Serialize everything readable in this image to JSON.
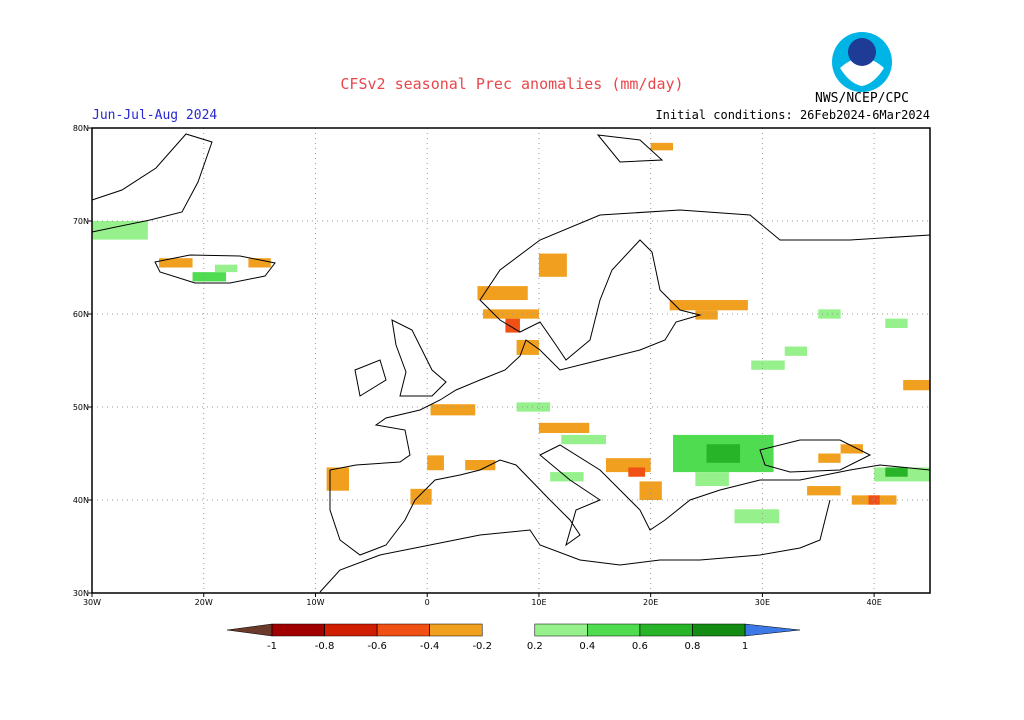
{
  "header": {
    "title": "CFSv2 seasonal Prec anomalies (mm/day)",
    "period": "Jun-Jul-Aug 2024",
    "agency": "NWS/NCEP/CPC",
    "initial_conditions": "Initial conditions: 26Feb2024-6Mar2024"
  },
  "map": {
    "lonlim": [
      -30,
      45
    ],
    "latlim": [
      30,
      80
    ],
    "lonticks": [
      {
        "value": -30,
        "label": "30W"
      },
      {
        "value": -20,
        "label": "20W"
      },
      {
        "value": -10,
        "label": "10W"
      },
      0,
      {
        "value": 10,
        "label": "10E"
      },
      {
        "value": 20,
        "label": "20E"
      },
      {
        "value": 30,
        "label": "30E"
      },
      {
        "value": 40,
        "label": "40E"
      }
    ],
    "latticks": [
      {
        "value": 80,
        "label": "80N"
      },
      {
        "value": 70,
        "label": "70N"
      },
      {
        "value": 60,
        "label": "60N"
      },
      {
        "value": 50,
        "label": "50N"
      },
      {
        "value": 40,
        "label": "40N"
      },
      {
        "value": 30,
        "label": "30N"
      }
    ],
    "grid": true,
    "colorbar": {
      "levels": [
        -1,
        -0.8,
        -0.6,
        -0.4,
        -0.2,
        0.2,
        0.4,
        0.6,
        0.8,
        1
      ],
      "colors": [
        "#6b3a2a",
        "#a00000",
        "#d21e00",
        "#f05014",
        "#f0a01e",
        "#ffffff",
        "#96f08c",
        "#50dc50",
        "#28b428",
        "#148c14",
        "#3c78e6"
      ]
    },
    "cells": [
      {
        "lon": [
          -30,
          -25
        ],
        "lat": [
          68,
          70
        ],
        "value": 0.3
      },
      {
        "lon": [
          -24,
          -21
        ],
        "lat": [
          65,
          66
        ],
        "value": -0.3
      },
      {
        "lon": [
          -16,
          -14
        ],
        "lat": [
          65,
          66
        ],
        "value": -0.3
      },
      {
        "lon": [
          -21,
          -18
        ],
        "lat": [
          63.5,
          64.5
        ],
        "value": 0.45
      },
      {
        "lon": [
          -19,
          -17
        ],
        "lat": [
          64.5,
          65.3
        ],
        "value": 0.25
      },
      {
        "lon": [
          4.5,
          9
        ],
        "lat": [
          61.5,
          63
        ],
        "value": -0.3
      },
      {
        "lon": [
          10,
          12.5
        ],
        "lat": [
          64,
          66.5
        ],
        "value": -0.3
      },
      {
        "lon": [
          5,
          10
        ],
        "lat": [
          59.5,
          60.5
        ],
        "value": -0.3
      },
      {
        "lon": [
          7,
          8.3
        ],
        "lat": [
          58,
          59.5
        ],
        "value": -0.5
      },
      {
        "lon": [
          8,
          10
        ],
        "lat": [
          55.6,
          57.2
        ],
        "value": -0.3
      },
      {
        "lon": [
          21.7,
          28.7
        ],
        "lat": [
          60.4,
          61.5
        ],
        "value": -0.3
      },
      {
        "lon": [
          24,
          26
        ],
        "lat": [
          59.4,
          60.4
        ],
        "value": -0.3
      },
      {
        "lon": [
          20,
          22
        ],
        "lat": [
          77.6,
          78.4
        ],
        "value": -0.3
      },
      {
        "lon": [
          35,
          37
        ],
        "lat": [
          59.5,
          60.5
        ],
        "value": 0.25
      },
      {
        "lon": [
          41,
          43
        ],
        "lat": [
          58.5,
          59.5
        ],
        "value": 0.25
      },
      {
        "lon": [
          32,
          34
        ],
        "lat": [
          55.5,
          56.5
        ],
        "value": 0.25
      },
      {
        "lon": [
          29,
          32
        ],
        "lat": [
          54,
          55
        ],
        "value": 0.25
      },
      {
        "lon": [
          42.6,
          45
        ],
        "lat": [
          51.8,
          52.9
        ],
        "value": -0.3
      },
      {
        "lon": [
          0.3,
          4.3
        ],
        "lat": [
          49.1,
          50.3
        ],
        "value": -0.3
      },
      {
        "lon": [
          8,
          11
        ],
        "lat": [
          49.5,
          50.5
        ],
        "value": 0.25
      },
      {
        "lon": [
          10,
          14.5
        ],
        "lat": [
          47.2,
          48.3
        ],
        "value": -0.3
      },
      {
        "lon": [
          12,
          16
        ],
        "lat": [
          46,
          47
        ],
        "value": 0.25
      },
      {
        "lon": [
          22,
          31
        ],
        "lat": [
          43,
          47
        ],
        "value": 0.45
      },
      {
        "lon": [
          25,
          28
        ],
        "lat": [
          44,
          46
        ],
        "value": 0.7
      },
      {
        "lon": [
          16,
          20
        ],
        "lat": [
          43,
          44.5
        ],
        "value": -0.3
      },
      {
        "lon": [
          18,
          19.5
        ],
        "lat": [
          42.5,
          43.5
        ],
        "value": -0.5
      },
      {
        "lon": [
          19,
          21
        ],
        "lat": [
          40,
          42
        ],
        "value": -0.3
      },
      {
        "lon": [
          11,
          14
        ],
        "lat": [
          42,
          43
        ],
        "value": 0.25
      },
      {
        "lon": [
          -9,
          -7
        ],
        "lat": [
          41,
          43.5
        ],
        "value": -0.3
      },
      {
        "lon": [
          0,
          1.5
        ],
        "lat": [
          43.2,
          44.8
        ],
        "value": -0.3
      },
      {
        "lon": [
          -1.5,
          0.4
        ],
        "lat": [
          39.5,
          41.2
        ],
        "value": -0.3
      },
      {
        "lon": [
          3.4,
          6.1
        ],
        "lat": [
          43.2,
          44.3
        ],
        "value": -0.3
      },
      {
        "lon": [
          34,
          37
        ],
        "lat": [
          40.5,
          41.5
        ],
        "value": -0.3
      },
      {
        "lon": [
          38,
          42
        ],
        "lat": [
          39.5,
          40.5
        ],
        "value": -0.3
      },
      {
        "lon": [
          39.5,
          40.5
        ],
        "lat": [
          39.5,
          40.5
        ],
        "value": -0.5
      },
      {
        "lon": [
          40,
          45
        ],
        "lat": [
          42,
          43.5
        ],
        "value": 0.3
      },
      {
        "lon": [
          41,
          43
        ],
        "lat": [
          42.5,
          43.5
        ],
        "value": 0.7
      },
      {
        "lon": [
          27.5,
          31.5
        ],
        "lat": [
          37.5,
          39
        ],
        "value": 0.3
      },
      {
        "lon": [
          24,
          27
        ],
        "lat": [
          41.5,
          43
        ],
        "value": 0.3
      },
      {
        "lon": [
          37,
          39
        ],
        "lat": [
          45,
          46
        ],
        "value": -0.3
      },
      {
        "lon": [
          35,
          37
        ],
        "lat": [
          44,
          45
        ],
        "value": -0.3
      }
    ]
  }
}
